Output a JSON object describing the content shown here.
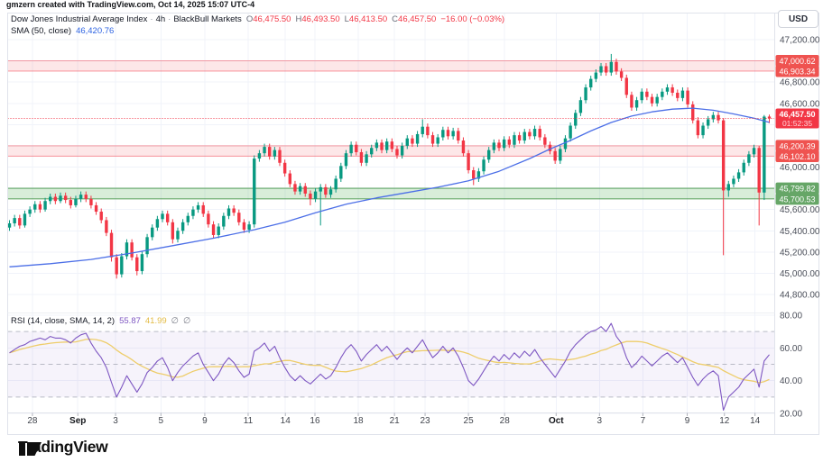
{
  "attribution": "gmzern created with TradingView.com, Oct 14, 2025 15:07 UTC-4",
  "header": {
    "symbol_title": "Dow Jones Industrial Average Index",
    "separator": "·",
    "interval": "4h",
    "broker": "BlackBull Markets",
    "ohlc": {
      "o_key": "O",
      "o": "46,475.50",
      "h_key": "H",
      "h": "46,493.50",
      "l_key": "L",
      "l": "46,413.50",
      "c_key": "C",
      "c": "46,457.50",
      "change": "−16.00 (−0.03%)"
    },
    "sma_label": "SMA (50, close)",
    "sma_value": "46,420.76"
  },
  "rsi_legend": {
    "label": "RSI (14, close, SMA, 14, 2)",
    "value": "55.87",
    "ma_value": "41.99",
    "empty1": "∅",
    "empty2": "∅"
  },
  "axis": {
    "currency": "USD"
  },
  "footer": {
    "brand": "TradingView"
  },
  "colors": {
    "up": "#089981",
    "down": "#f23645",
    "sma_line": "#4c6fe7",
    "rsi_line": "#7e57c2",
    "rsi_ma_line": "#eecd6a",
    "zone_red_fill": "rgba(242,54,69,0.12)",
    "zone_red_line": "rgba(242,54,69,0.45)",
    "zone_green_fill": "rgba(76,175,80,0.22)",
    "zone_green_line": "rgba(56,142,60,0.75)",
    "badge_red": "#ef5350",
    "badge_green": "#66a667",
    "last_price_badge": "#f23645",
    "grid": "#f0f3fa",
    "border": "#e0e3eb",
    "axis_text": "#4a4e59",
    "rsi_band_fill": "rgba(126,87,194,0.07)",
    "rsi_dash": "#a9abb8"
  },
  "chart_data": {
    "type": "candlestick",
    "title": "Dow Jones Industrial Average Index",
    "interval": "4h",
    "provider": "BlackBull Markets",
    "currency": "USD",
    "price_axis": {
      "grid_min": 44800,
      "grid_max": 47200,
      "grid_step": 200,
      "visible_labels": [
        [
          47200,
          "47,200.00"
        ],
        [
          46800,
          "46,800.00"
        ],
        [
          46600,
          "46,600.00"
        ],
        [
          46000,
          "46,000.00"
        ],
        [
          45600,
          "45,600.00"
        ],
        [
          45400,
          "45,400.00"
        ],
        [
          45200,
          "45,200.00"
        ],
        [
          45000,
          "45,000.00"
        ],
        [
          44800,
          "44,800.00"
        ]
      ]
    },
    "last_price": {
      "value": 46457.5,
      "label": "46,457.50",
      "countdown": "01:52:35"
    },
    "zones": [
      {
        "kind": "resistance",
        "top": 47000.62,
        "bottom": 46903.34,
        "top_label": "47,000.62",
        "bottom_label": "46,903.34"
      },
      {
        "kind": "resistance",
        "top": 46200.39,
        "bottom": 46102.1,
        "top_label": "46,200.39",
        "bottom_label": "46,102.10"
      },
      {
        "kind": "support",
        "top": 45799.82,
        "bottom": 45700.53,
        "top_label": "45,799.82",
        "bottom_label": "45,700.53"
      }
    ],
    "candles": [
      [
        45430,
        45500,
        45400,
        45470
      ],
      [
        45470,
        45550,
        45440,
        45520
      ],
      [
        45520,
        45550,
        45420,
        45450
      ],
      [
        45450,
        45590,
        45430,
        45560
      ],
      [
        45560,
        45630,
        45530,
        45600
      ],
      [
        45600,
        45680,
        45570,
        45650
      ],
      [
        45650,
        45680,
        45570,
        45600
      ],
      [
        45600,
        45710,
        45580,
        45680
      ],
      [
        45680,
        45750,
        45650,
        45720
      ],
      [
        45720,
        45750,
        45650,
        45680
      ],
      [
        45680,
        45760,
        45660,
        45730
      ],
      [
        45730,
        45760,
        45660,
        45690
      ],
      [
        45690,
        45720,
        45610,
        45640
      ],
      [
        45640,
        45730,
        45620,
        45700
      ],
      [
        45700,
        45770,
        45670,
        45740
      ],
      [
        45740,
        45770,
        45670,
        45700
      ],
      [
        45700,
        45730,
        45610,
        45640
      ],
      [
        45640,
        45670,
        45550,
        45580
      ],
      [
        45580,
        45610,
        45470,
        45500
      ],
      [
        45500,
        45530,
        45350,
        45380
      ],
      [
        45380,
        45410,
        45110,
        45150
      ],
      [
        45150,
        45180,
        44950,
        44990
      ],
      [
        44990,
        45190,
        44960,
        45160
      ],
      [
        45160,
        45320,
        45130,
        45290
      ],
      [
        45290,
        45320,
        45120,
        45150
      ],
      [
        45150,
        45180,
        44980,
        45020
      ],
      [
        45020,
        45210,
        44990,
        45180
      ],
      [
        45180,
        45370,
        45150,
        45340
      ],
      [
        45340,
        45460,
        45310,
        45430
      ],
      [
        45430,
        45540,
        45400,
        45510
      ],
      [
        45510,
        45590,
        45480,
        45560
      ],
      [
        45560,
        45590,
        45450,
        45480
      ],
      [
        45480,
        45510,
        45280,
        45320
      ],
      [
        45320,
        45430,
        45290,
        45400
      ],
      [
        45400,
        45510,
        45370,
        45480
      ],
      [
        45480,
        45570,
        45450,
        45540
      ],
      [
        45540,
        45630,
        45510,
        45600
      ],
      [
        45600,
        45670,
        45570,
        45640
      ],
      [
        45640,
        45670,
        45530,
        45560
      ],
      [
        45560,
        45590,
        45430,
        45460
      ],
      [
        45460,
        45490,
        45330,
        45360
      ],
      [
        45360,
        45470,
        45330,
        45440
      ],
      [
        45440,
        45570,
        45410,
        45540
      ],
      [
        45540,
        45640,
        45510,
        45610
      ],
      [
        45610,
        45640,
        45540,
        45570
      ],
      [
        45570,
        45600,
        45450,
        45480
      ],
      [
        45480,
        45510,
        45380,
        45410
      ],
      [
        45410,
        45490,
        45380,
        45460
      ],
      [
        45460,
        46110,
        45430,
        46080
      ],
      [
        46080,
        46160,
        46050,
        46130
      ],
      [
        46130,
        46220,
        46100,
        46190
      ],
      [
        46190,
        46220,
        46070,
        46100
      ],
      [
        46100,
        46190,
        46070,
        46160
      ],
      [
        46160,
        46190,
        46010,
        46040
      ],
      [
        46040,
        46070,
        45910,
        45940
      ],
      [
        45940,
        45970,
        45810,
        45840
      ],
      [
        45840,
        45870,
        45740,
        45770
      ],
      [
        45770,
        45850,
        45740,
        45820
      ],
      [
        45820,
        45850,
        45720,
        45750
      ],
      [
        45750,
        45780,
        45640,
        45700
      ],
      [
        45700,
        45800,
        45670,
        45770
      ],
      [
        45770,
        45840,
        45450,
        45810
      ],
      [
        45810,
        45840,
        45710,
        45740
      ],
      [
        45740,
        45820,
        45710,
        45790
      ],
      [
        45790,
        45920,
        45760,
        45890
      ],
      [
        45890,
        46040,
        45860,
        46010
      ],
      [
        46010,
        46160,
        45980,
        46130
      ],
      [
        46130,
        46240,
        46100,
        46210
      ],
      [
        46210,
        46240,
        46110,
        46140
      ],
      [
        46140,
        46170,
        46010,
        46040
      ],
      [
        46040,
        46150,
        46010,
        46120
      ],
      [
        46120,
        46210,
        46090,
        46180
      ],
      [
        46180,
        46260,
        46150,
        46230
      ],
      [
        46230,
        46260,
        46130,
        46160
      ],
      [
        46160,
        46270,
        46130,
        46240
      ],
      [
        46240,
        46270,
        46140,
        46170
      ],
      [
        46170,
        46200,
        46080,
        46110
      ],
      [
        46110,
        46230,
        46080,
        46200
      ],
      [
        46200,
        46300,
        46170,
        46270
      ],
      [
        46270,
        46300,
        46190,
        46220
      ],
      [
        46220,
        46340,
        46190,
        46310
      ],
      [
        46310,
        46450,
        46280,
        46380
      ],
      [
        46380,
        46410,
        46270,
        46300
      ],
      [
        46300,
        46330,
        46190,
        46220
      ],
      [
        46220,
        46310,
        46190,
        46280
      ],
      [
        46280,
        46380,
        46250,
        46350
      ],
      [
        46350,
        46380,
        46260,
        46290
      ],
      [
        46290,
        46370,
        46260,
        46340
      ],
      [
        46340,
        46370,
        46220,
        46250
      ],
      [
        46250,
        46280,
        46100,
        46130
      ],
      [
        46130,
        46160,
        45940,
        45970
      ],
      [
        45970,
        46000,
        45830,
        45890
      ],
      [
        45890,
        45990,
        45860,
        45960
      ],
      [
        45960,
        46100,
        45930,
        46070
      ],
      [
        46070,
        46190,
        46040,
        46160
      ],
      [
        46160,
        46260,
        46130,
        46230
      ],
      [
        46230,
        46260,
        46150,
        46180
      ],
      [
        46180,
        46290,
        46150,
        46260
      ],
      [
        46260,
        46290,
        46180,
        46210
      ],
      [
        46210,
        46330,
        46180,
        46300
      ],
      [
        46300,
        46330,
        46220,
        46250
      ],
      [
        46250,
        46360,
        46220,
        46330
      ],
      [
        46330,
        46360,
        46260,
        46290
      ],
      [
        46290,
        46390,
        46260,
        46360
      ],
      [
        46360,
        46390,
        46250,
        46280
      ],
      [
        46280,
        46310,
        46180,
        46210
      ],
      [
        46210,
        46240,
        46120,
        46150
      ],
      [
        46150,
        46180,
        46030,
        46060
      ],
      [
        46060,
        46200,
        46030,
        46170
      ],
      [
        46170,
        46300,
        46140,
        46270
      ],
      [
        46270,
        46420,
        46240,
        46390
      ],
      [
        46390,
        46540,
        46360,
        46510
      ],
      [
        46510,
        46660,
        46480,
        46630
      ],
      [
        46630,
        46780,
        46600,
        46750
      ],
      [
        46750,
        46860,
        46720,
        46830
      ],
      [
        46830,
        46920,
        46800,
        46890
      ],
      [
        46890,
        46980,
        46860,
        46950
      ],
      [
        46950,
        46980,
        46860,
        46890
      ],
      [
        46890,
        47065,
        46860,
        46990
      ],
      [
        46990,
        47020,
        46870,
        46900
      ],
      [
        46900,
        46930,
        46810,
        46840
      ],
      [
        46840,
        46870,
        46650,
        46680
      ],
      [
        46680,
        46710,
        46530,
        46560
      ],
      [
        46560,
        46660,
        46530,
        46630
      ],
      [
        46630,
        46740,
        46600,
        46710
      ],
      [
        46710,
        46740,
        46630,
        46660
      ],
      [
        46660,
        46690,
        46570,
        46600
      ],
      [
        46600,
        46690,
        46570,
        46660
      ],
      [
        46660,
        46740,
        46630,
        46710
      ],
      [
        46710,
        46780,
        46680,
        46750
      ],
      [
        46750,
        46780,
        46670,
        46700
      ],
      [
        46700,
        46730,
        46620,
        46650
      ],
      [
        46650,
        46750,
        46620,
        46720
      ],
      [
        46720,
        46750,
        46560,
        46590
      ],
      [
        46590,
        46620,
        46410,
        46440
      ],
      [
        46440,
        46470,
        46270,
        46300
      ],
      [
        46300,
        46420,
        46270,
        46390
      ],
      [
        46390,
        46480,
        46360,
        46450
      ],
      [
        46450,
        46520,
        46420,
        46490
      ],
      [
        46490,
        46520,
        46410,
        46440
      ],
      [
        46440,
        46460,
        45170,
        45780
      ],
      [
        45780,
        45870,
        45720,
        45840
      ],
      [
        45840,
        45920,
        45810,
        45890
      ],
      [
        45890,
        45980,
        45860,
        45950
      ],
      [
        45950,
        46070,
        45920,
        46040
      ],
      [
        46040,
        46150,
        46010,
        46120
      ],
      [
        46120,
        46210,
        46090,
        46180
      ],
      [
        46180,
        46200,
        45450,
        45760
      ],
      [
        45760,
        46490,
        45690,
        46475
      ],
      [
        46475.5,
        46493.5,
        46413.5,
        46457.5
      ]
    ],
    "sma50": {
      "period": 50,
      "source": "close",
      "last_value_label": "46,420.76",
      "points": [
        [
          0,
          45060
        ],
        [
          8,
          45090
        ],
        [
          16,
          45130
        ],
        [
          24,
          45190
        ],
        [
          32,
          45260
        ],
        [
          40,
          45330
        ],
        [
          48,
          45410
        ],
        [
          54,
          45480
        ],
        [
          60,
          45570
        ],
        [
          66,
          45650
        ],
        [
          72,
          45710
        ],
        [
          78,
          45760
        ],
        [
          84,
          45810
        ],
        [
          90,
          45870
        ],
        [
          96,
          45960
        ],
        [
          102,
          46080
        ],
        [
          106,
          46170
        ],
        [
          110,
          46250
        ],
        [
          114,
          46340
        ],
        [
          118,
          46420
        ],
        [
          122,
          46480
        ],
        [
          126,
          46520
        ],
        [
          130,
          46545
        ],
        [
          134,
          46555
        ],
        [
          138,
          46535
        ],
        [
          142,
          46500
        ],
        [
          146,
          46460
        ],
        [
          149,
          46421
        ]
      ]
    },
    "rsi": {
      "period": 14,
      "ma_period": 14,
      "last_value_label": "55.87",
      "ma_last_value_label": "41.99",
      "levels": {
        "upper": 70,
        "middle": 50,
        "lower": 30
      },
      "axis_labels": [
        [
          80,
          "80.00"
        ],
        [
          60,
          "60.00"
        ],
        [
          40,
          "40.00"
        ],
        [
          20,
          "20.00"
        ]
      ],
      "values": [
        57,
        59,
        61,
        62,
        64,
        65,
        66,
        65,
        67,
        66,
        66,
        65,
        63,
        66,
        68,
        69,
        63,
        58,
        54,
        48,
        39,
        30,
        36,
        43,
        38,
        33,
        38,
        45,
        48,
        52,
        54,
        48,
        40,
        45,
        49,
        52,
        55,
        57,
        50,
        45,
        40,
        44,
        50,
        54,
        51,
        46,
        42,
        44,
        58,
        60,
        63,
        58,
        61,
        54,
        48,
        43,
        40,
        43,
        40,
        38,
        41,
        44,
        41,
        43,
        48,
        54,
        59,
        62,
        58,
        52,
        56,
        59,
        62,
        58,
        61,
        57,
        53,
        57,
        60,
        57,
        61,
        65,
        59,
        54,
        57,
        61,
        57,
        60,
        55,
        48,
        40,
        37,
        41,
        46,
        51,
        55,
        52,
        56,
        53,
        57,
        54,
        58,
        55,
        59,
        54,
        50,
        46,
        42,
        47,
        52,
        58,
        62,
        65,
        68,
        70,
        71,
        73,
        70,
        75,
        67,
        63,
        54,
        48,
        51,
        55,
        52,
        49,
        52,
        55,
        57,
        54,
        51,
        54,
        48,
        42,
        37,
        41,
        44,
        46,
        43,
        22,
        30,
        33,
        36,
        41,
        44,
        47,
        36,
        52,
        55.87
      ]
    },
    "time_axis": {
      "ticks": [
        {
          "i": 4.5,
          "label": "28"
        },
        {
          "i": 13.4,
          "label": "Sep",
          "major": true
        },
        {
          "i": 20.8,
          "label": "3"
        },
        {
          "i": 29.7,
          "label": "5"
        },
        {
          "i": 38.3,
          "label": "9"
        },
        {
          "i": 46.8,
          "label": "11"
        },
        {
          "i": 54.1,
          "label": "14"
        },
        {
          "i": 59.9,
          "label": "16"
        },
        {
          "i": 68.4,
          "label": "18"
        },
        {
          "i": 75.5,
          "label": "21"
        },
        {
          "i": 81.5,
          "label": "23"
        },
        {
          "i": 90.0,
          "label": "25"
        },
        {
          "i": 97.1,
          "label": "28"
        },
        {
          "i": 107.2,
          "label": "Oct",
          "major": true
        },
        {
          "i": 115.7,
          "label": "3"
        },
        {
          "i": 124.2,
          "label": "7"
        },
        {
          "i": 132.9,
          "label": "9"
        },
        {
          "i": 140.2,
          "label": "12"
        },
        {
          "i": 146.2,
          "label": "14"
        }
      ]
    }
  }
}
